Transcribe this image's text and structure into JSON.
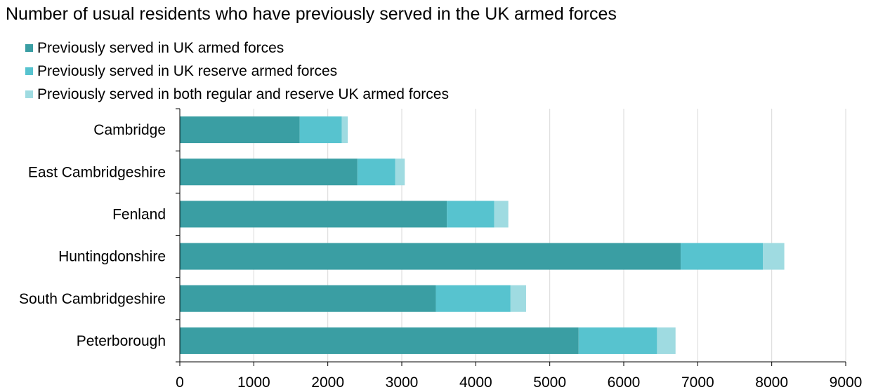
{
  "chart_data": {
    "type": "bar",
    "orientation": "horizontal",
    "stacked": true,
    "title": "Number of usual residents who have previously served in the UK armed forces",
    "categories": [
      "Cambridge",
      "East Cambridgeshire",
      "Fenland",
      "Huntingdonshire",
      "South Cambridgeshire",
      "Peterborough"
    ],
    "series": [
      {
        "name": "Previously served in UK armed forces",
        "color": "#3a9ea3",
        "values": [
          1620,
          2400,
          3610,
          6770,
          3460,
          5390
        ]
      },
      {
        "name": "Previously served in UK reserve armed forces",
        "color": "#57c3cf",
        "values": [
          570,
          510,
          640,
          1110,
          1010,
          1060
        ]
      },
      {
        "name": "Previously served in both regular and reserve UK armed forces",
        "color": "#9fdbe1",
        "values": [
          80,
          130,
          190,
          290,
          210,
          250
        ]
      }
    ],
    "xlim": [
      0,
      9000
    ],
    "xticks": [
      0,
      1000,
      2000,
      3000,
      4000,
      5000,
      6000,
      7000,
      8000,
      9000
    ],
    "grid": true,
    "legend_position": "top-left",
    "xlabel": "",
    "ylabel": ""
  }
}
